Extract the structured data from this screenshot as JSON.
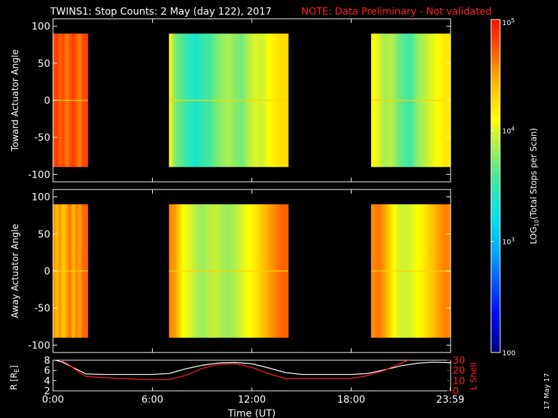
{
  "title": {
    "main": "TWINS1: Stop Counts:  2 May (day 122), 2017",
    "note": "NOTE: Data Preliminary - Not validated"
  },
  "date_stamp": "17 May 17",
  "colors": {
    "background": "#000000",
    "axis": "#ffffff",
    "note": "#ff2020",
    "lshell_line": "#ff2020",
    "r_line": "#ffffff"
  },
  "chart_data": [
    {
      "type": "heatmap",
      "name": "toward",
      "ylabel": "Toward Actuator Angle",
      "xlim": [
        0,
        24
      ],
      "ylim": [
        -110,
        110
      ],
      "yticks": [
        -100,
        -50,
        0,
        50,
        100
      ],
      "data_y_range": [
        -90,
        90
      ],
      "data_intervals": [
        [
          0,
          2.1
        ],
        [
          7.0,
          14.2
        ],
        [
          19.2,
          24.0
        ]
      ],
      "time_bands": [
        {
          "t": 0.0,
          "v": 4.75
        },
        {
          "t": 0.2,
          "v": 4.85
        },
        {
          "t": 0.4,
          "v": 4.7
        },
        {
          "t": 0.6,
          "v": 4.8
        },
        {
          "t": 0.8,
          "v": 4.6
        },
        {
          "t": 1.0,
          "v": 4.75
        },
        {
          "t": 1.2,
          "v": 4.85
        },
        {
          "t": 1.4,
          "v": 4.7
        },
        {
          "t": 1.6,
          "v": 4.6
        },
        {
          "t": 1.8,
          "v": 4.8
        },
        {
          "t": 7.0,
          "v": 4.1
        },
        {
          "t": 7.4,
          "v": 3.7
        },
        {
          "t": 7.8,
          "v": 3.6
        },
        {
          "t": 8.2,
          "v": 3.45
        },
        {
          "t": 8.6,
          "v": 3.35
        },
        {
          "t": 9.0,
          "v": 3.5
        },
        {
          "t": 9.4,
          "v": 3.55
        },
        {
          "t": 9.8,
          "v": 3.7
        },
        {
          "t": 10.2,
          "v": 3.8
        },
        {
          "t": 10.6,
          "v": 3.85
        },
        {
          "t": 11.0,
          "v": 3.75
        },
        {
          "t": 11.4,
          "v": 3.7
        },
        {
          "t": 11.8,
          "v": 3.9
        },
        {
          "t": 12.2,
          "v": 4.0
        },
        {
          "t": 12.6,
          "v": 3.95
        },
        {
          "t": 13.0,
          "v": 4.1
        },
        {
          "t": 13.4,
          "v": 4.2
        },
        {
          "t": 13.8,
          "v": 4.25
        },
        {
          "t": 19.2,
          "v": 4.15
        },
        {
          "t": 19.6,
          "v": 4.0
        },
        {
          "t": 20.0,
          "v": 3.85
        },
        {
          "t": 20.4,
          "v": 3.9
        },
        {
          "t": 20.8,
          "v": 3.7
        },
        {
          "t": 21.2,
          "v": 3.6
        },
        {
          "t": 21.6,
          "v": 3.55
        },
        {
          "t": 22.0,
          "v": 3.8
        },
        {
          "t": 22.4,
          "v": 3.9
        },
        {
          "t": 22.8,
          "v": 4.0
        },
        {
          "t": 23.2,
          "v": 4.1
        },
        {
          "t": 23.6,
          "v": 4.2
        }
      ]
    },
    {
      "type": "heatmap",
      "name": "away",
      "ylabel": "Away Actuator Angle",
      "xlim": [
        0,
        24
      ],
      "ylim": [
        -110,
        110
      ],
      "yticks": [
        -100,
        -50,
        0,
        50,
        100
      ],
      "data_y_range": [
        -90,
        90
      ],
      "data_intervals": [
        [
          0,
          2.1
        ],
        [
          7.0,
          14.2
        ],
        [
          19.2,
          24.0
        ]
      ],
      "time_bands": [
        {
          "t": 0.0,
          "v": 4.6
        },
        {
          "t": 0.2,
          "v": 4.4
        },
        {
          "t": 0.4,
          "v": 4.55
        },
        {
          "t": 0.6,
          "v": 4.3
        },
        {
          "t": 0.8,
          "v": 4.5
        },
        {
          "t": 1.0,
          "v": 4.65
        },
        {
          "t": 1.2,
          "v": 4.4
        },
        {
          "t": 1.4,
          "v": 4.6
        },
        {
          "t": 1.6,
          "v": 4.5
        },
        {
          "t": 1.8,
          "v": 4.7
        },
        {
          "t": 7.0,
          "v": 4.6
        },
        {
          "t": 7.4,
          "v": 4.5
        },
        {
          "t": 7.8,
          "v": 4.1
        },
        {
          "t": 8.2,
          "v": 4.0
        },
        {
          "t": 8.6,
          "v": 3.9
        },
        {
          "t": 9.0,
          "v": 3.8
        },
        {
          "t": 9.4,
          "v": 3.9
        },
        {
          "t": 9.8,
          "v": 3.95
        },
        {
          "t": 10.2,
          "v": 3.85
        },
        {
          "t": 10.6,
          "v": 3.8
        },
        {
          "t": 11.0,
          "v": 3.9
        },
        {
          "t": 11.4,
          "v": 4.0
        },
        {
          "t": 11.8,
          "v": 4.1
        },
        {
          "t": 12.2,
          "v": 4.2
        },
        {
          "t": 12.6,
          "v": 4.35
        },
        {
          "t": 13.0,
          "v": 4.5
        },
        {
          "t": 13.4,
          "v": 4.6
        },
        {
          "t": 13.8,
          "v": 4.7
        },
        {
          "t": 19.2,
          "v": 4.55
        },
        {
          "t": 19.6,
          "v": 4.65
        },
        {
          "t": 20.0,
          "v": 4.5
        },
        {
          "t": 20.4,
          "v": 4.2
        },
        {
          "t": 20.8,
          "v": 4.0
        },
        {
          "t": 21.2,
          "v": 3.95
        },
        {
          "t": 21.6,
          "v": 4.0
        },
        {
          "t": 22.0,
          "v": 4.1
        },
        {
          "t": 22.4,
          "v": 4.2
        },
        {
          "t": 22.8,
          "v": 4.35
        },
        {
          "t": 23.2,
          "v": 4.5
        },
        {
          "t": 23.6,
          "v": 4.6
        }
      ]
    },
    {
      "type": "line",
      "name": "orbit",
      "xlabel": "Time (UT)",
      "xticks": [
        0,
        6,
        12,
        18,
        23.983
      ],
      "xtick_labels": [
        "0:00",
        "6:00",
        "12:00",
        "18:00",
        "23:59"
      ],
      "xlim": [
        0,
        24
      ],
      "left_axis": {
        "label": "R [R",
        "label_sub": "E",
        "label_close": "]",
        "ylim": [
          2,
          8
        ],
        "ticks": [
          2,
          4,
          6,
          8
        ]
      },
      "right_axis": {
        "label": "L Shell",
        "ylim": [
          0,
          30
        ],
        "ticks": [
          0,
          10,
          20,
          30
        ]
      },
      "series": [
        {
          "axis": "left",
          "x": [
            0,
            0.5,
            1,
            1.5,
            2,
            3,
            4,
            5,
            6,
            7,
            8,
            9,
            10,
            11,
            12,
            13,
            14,
            15,
            16,
            17,
            18,
            19,
            20,
            21,
            22,
            23,
            24
          ],
          "y": [
            8.1,
            7.7,
            6.9,
            6.1,
            5.3,
            5.2,
            5.2,
            5.2,
            5.2,
            5.4,
            6.3,
            7.0,
            7.45,
            7.55,
            7.3,
            6.5,
            5.6,
            5.2,
            5.2,
            5.2,
            5.2,
            5.4,
            6.1,
            6.9,
            7.4,
            7.6,
            7.5
          ]
        },
        {
          "axis": "right",
          "x": [
            0,
            0.5,
            1,
            1.5,
            2,
            3,
            4,
            5,
            6,
            7,
            8,
            9,
            10,
            11,
            12,
            13,
            14,
            15,
            16,
            17,
            18,
            19,
            20,
            21,
            22
          ],
          "y": [
            32,
            30,
            25,
            19,
            14,
            13,
            12,
            11.5,
            11,
            11,
            15,
            22,
            26,
            26.5,
            23,
            17,
            12,
            12,
            12,
            12,
            12,
            15,
            20,
            27,
            34
          ]
        }
      ]
    },
    {
      "type": "colorbar",
      "label": "LOG",
      "label_sub": "10",
      "label_rest": "(Total Stops per Scan)",
      "scale": "log",
      "range": [
        100,
        100000
      ],
      "tick_labels": [
        {
          "pow": 2,
          "text": "100"
        },
        {
          "pow": 3,
          "text": "10",
          "sup": "3"
        },
        {
          "pow": 4,
          "text": "10",
          "sup": "4"
        },
        {
          "pow": 5,
          "text": "10",
          "sup": "5"
        }
      ]
    }
  ]
}
